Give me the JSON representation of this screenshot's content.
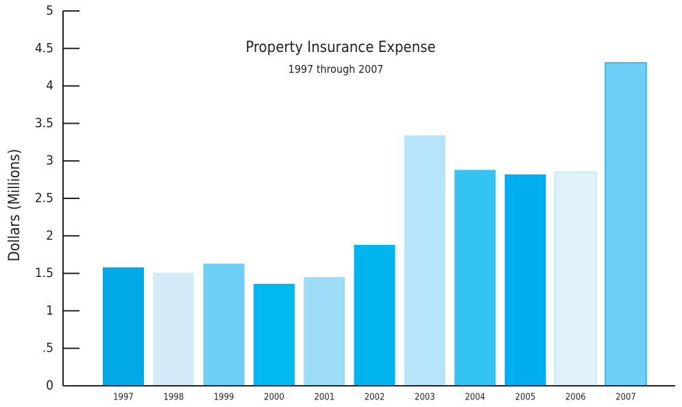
{
  "chart_data": {
    "type": "bar",
    "title": "Property Insurance Expense",
    "subtitle": "1997 through 2007",
    "y_label": "Dollars (Millions)",
    "categories": [
      "1997",
      "1998",
      "1999",
      "2000",
      "2001",
      "2002",
      "2003",
      "2004",
      "2005",
      "2006",
      "2007"
    ],
    "values": [
      1.58,
      1.51,
      1.63,
      1.36,
      1.45,
      1.88,
      3.34,
      2.88,
      2.82,
      2.85,
      4.31
    ],
    "colors": [
      "#00a9e6",
      "#d5ecf8",
      "#6dcff6",
      "#00b9f1",
      "#9ddcf7",
      "#00b4ef",
      "#b6e4f9",
      "#33c4f2",
      "#00aeef",
      "#e0f3fb",
      "#6dcff6"
    ],
    "ylim": [
      0,
      5
    ],
    "yticks": [
      0,
      {
        "value": 0.5,
        "label": ".5"
      },
      1,
      1.5,
      2,
      2.5,
      3,
      3.5,
      4,
      4.5,
      5
    ],
    "grid": false
  }
}
